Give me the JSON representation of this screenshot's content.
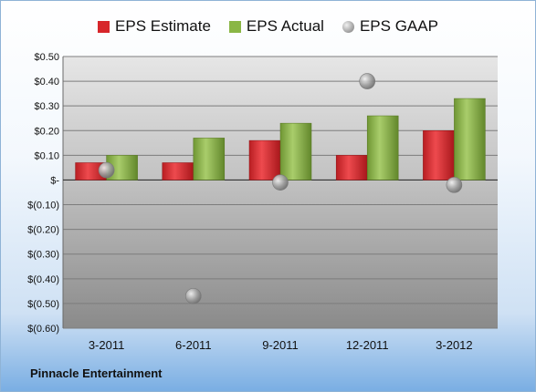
{
  "company": "Pinnacle Entertainment",
  "legend": {
    "estimate": "EPS Estimate",
    "actual": "EPS Actual",
    "gaap": "EPS GAAP"
  },
  "colors": {
    "estimate": "#d7262b",
    "actual": "#8ab645",
    "gaap": "#9a9a9a"
  },
  "chart_data": {
    "type": "bar",
    "categories": [
      "3-2011",
      "6-2011",
      "9-2011",
      "12-2011",
      "3-2012"
    ],
    "series": [
      {
        "name": "EPS Estimate",
        "type": "bar",
        "values": [
          0.07,
          0.07,
          0.16,
          0.1,
          0.2
        ]
      },
      {
        "name": "EPS Actual",
        "type": "bar",
        "values": [
          0.1,
          0.17,
          0.23,
          0.26,
          0.33
        ]
      },
      {
        "name": "EPS GAAP",
        "type": "scatter",
        "values": [
          0.04,
          -0.47,
          -0.01,
          0.4,
          -0.02
        ]
      }
    ],
    "ylim": [
      -0.6,
      0.5
    ],
    "yticks": [
      0.5,
      0.4,
      0.3,
      0.2,
      0.1,
      0,
      -0.1,
      -0.2,
      -0.3,
      -0.4,
      -0.5,
      -0.6
    ],
    "ytick_labels": [
      "$0.50",
      "$0.40",
      "$0.30",
      "$0.20",
      "$0.10",
      "$-",
      "$(0.10)",
      "$(0.20)",
      "$(0.30)",
      "$(0.40)",
      "$(0.50)",
      "$(0.60)"
    ],
    "grid": true,
    "legend_position": "top"
  }
}
